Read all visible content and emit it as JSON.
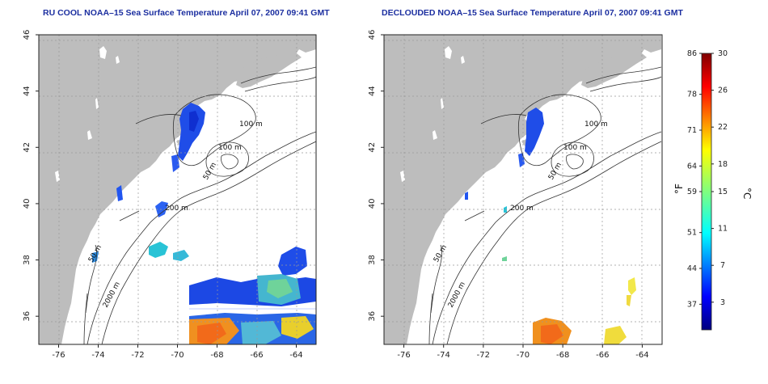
{
  "left_map": {
    "title": "RU COOL NOAA–15 Sea Surface Temperature April 07, 2007 09:41 GMT",
    "contour_labels": [
      "100 m",
      "100 m",
      "50 m",
      "200 m",
      "50 m",
      "2000 m"
    ]
  },
  "right_map": {
    "title": "DECLOUDED NOAA–15 Sea Surface Temperature April 07, 2007 09:41 GMT",
    "contour_labels": [
      "100 m",
      "100 m",
      "50 m",
      "200 m",
      "50 m",
      "2000 m"
    ]
  },
  "axes": {
    "lon_ticks": [
      "-76",
      "-74",
      "-72",
      "-70",
      "-68",
      "-66",
      "-64"
    ],
    "lat_ticks": [
      "46",
      "44",
      "42",
      "40",
      "38",
      "36"
    ],
    "lon_range": [
      -77.0,
      -63.0
    ],
    "lat_range": [
      35.0,
      46.0
    ],
    "grid": true
  },
  "colorbar": {
    "fahrenheit_ticks": [
      "86",
      "78",
      "71",
      "64",
      "59",
      "51",
      "44",
      "37"
    ],
    "celsius_ticks": [
      "30",
      "26",
      "22",
      "18",
      "15",
      "11",
      "7",
      "3"
    ],
    "fahrenheit_unit": "°F",
    "celsius_unit": "°C",
    "range_c": [
      0,
      30
    ]
  },
  "colors": {
    "land": "#bdbdbd",
    "title": "#1c2fa0",
    "cold": "#1b40e0",
    "warm": "#f08a1c"
  }
}
